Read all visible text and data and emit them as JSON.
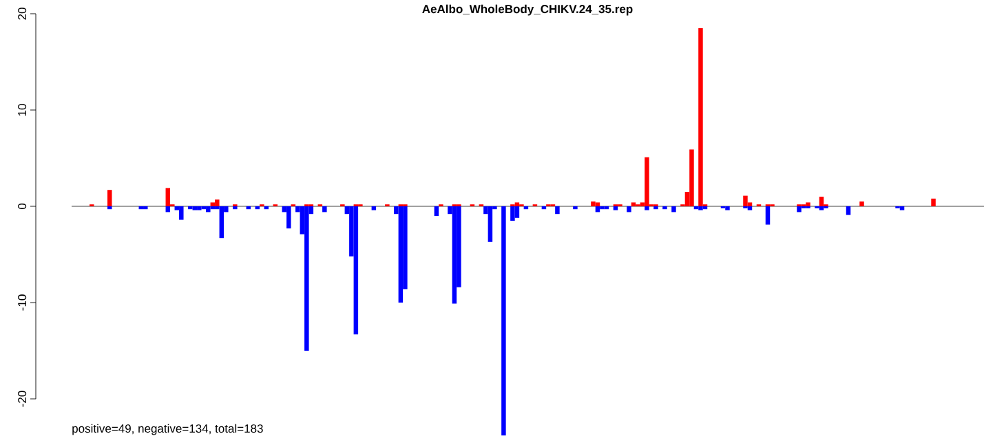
{
  "chart_data": {
    "type": "bar",
    "title": "AeAlbo_WholeBody_CHIKV.24_35.rep",
    "categories": [
      null,
      null,
      null,
      null,
      null,
      null,
      null,
      null,
      null,
      null,
      null,
      null,
      null,
      null,
      null,
      null,
      null,
      null,
      null,
      null,
      null,
      null,
      null,
      null,
      null,
      null,
      null,
      null,
      null,
      null,
      null,
      null,
      null,
      null,
      null,
      null,
      null,
      null,
      null,
      null,
      null,
      null,
      null,
      null,
      null,
      null,
      null,
      null,
      null,
      null,
      null,
      null,
      null,
      null,
      null,
      null,
      null,
      null,
      null,
      null,
      null,
      null,
      null,
      null,
      null,
      null,
      null,
      null,
      null,
      null,
      null,
      null,
      null,
      null,
      null,
      null,
      null,
      null,
      null,
      null,
      null,
      null,
      null,
      null,
      null,
      null,
      null,
      null,
      null,
      null,
      null,
      null,
      null,
      null,
      null,
      null,
      null,
      null,
      null,
      null,
      null,
      null,
      null,
      null,
      null,
      null,
      null,
      null,
      null,
      null,
      null,
      null,
      null,
      null,
      null,
      null,
      null,
      null,
      null,
      null,
      null,
      null,
      null,
      null,
      null,
      null,
      null,
      null,
      null,
      null,
      null,
      null,
      null,
      null,
      null,
      null,
      null,
      null,
      null,
      null,
      null,
      null,
      null,
      null,
      null,
      null,
      null,
      null,
      null,
      null,
      null,
      null,
      null,
      null,
      null,
      null,
      null,
      null,
      null,
      null,
      null,
      null,
      null,
      null,
      null,
      null,
      null,
      null,
      null,
      null,
      null,
      null,
      null,
      null,
      null,
      null,
      null,
      null,
      null,
      null,
      null,
      null,
      null,
      null,
      null,
      null,
      null,
      null,
      null,
      null,
      null,
      null,
      null,
      null,
      null,
      null,
      null,
      null,
      null,
      null,
      null,
      null,
      null,
      null
    ],
    "series": [
      {
        "color": "#ff0000",
        "values": [
          null,
          null,
          null,
          null,
          0.2,
          null,
          null,
          null,
          1.7,
          null,
          null,
          null,
          null,
          null,
          null,
          null,
          null,
          null,
          null,
          null,
          null,
          1.9,
          0.2,
          null,
          null,
          null,
          null,
          null,
          null,
          null,
          null,
          0.4,
          0.7,
          null,
          null,
          null,
          0.2,
          null,
          null,
          null,
          null,
          null,
          0.2,
          null,
          null,
          0.2,
          null,
          null,
          null,
          0.2,
          null,
          null,
          0.2,
          0.2,
          null,
          0.2,
          null,
          null,
          null,
          null,
          0.2,
          null,
          null,
          0.2,
          0.2,
          null,
          null,
          null,
          null,
          null,
          0.2,
          null,
          null,
          0.2,
          0.2,
          null,
          null,
          null,
          null,
          null,
          null,
          null,
          0.2,
          null,
          null,
          0.2,
          0.2,
          null,
          null,
          0.2,
          null,
          0.2,
          null,
          null,
          null,
          null,
          null,
          null,
          0.2,
          0.4,
          0.2,
          null,
          null,
          0.2,
          null,
          null,
          0.2,
          0.2,
          null,
          null,
          null,
          null,
          null,
          null,
          null,
          null,
          0.5,
          0.4,
          null,
          null,
          null,
          0.2,
          0.2,
          null,
          null,
          0.4,
          0.2,
          0.4,
          5.1,
          0.2,
          0.2,
          null,
          null,
          null,
          null,
          null,
          0.2,
          1.5,
          5.9,
          null,
          18.5,
          0.2,
          null,
          null,
          null,
          null,
          null,
          null,
          null,
          null,
          1.1,
          0.4,
          null,
          0.2,
          null,
          0.2,
          0.2,
          null,
          null,
          null,
          null,
          null,
          0.2,
          0.2,
          0.4,
          null,
          null,
          1.0,
          0.2,
          null,
          null,
          null,
          null,
          null,
          null,
          null,
          0.5,
          null,
          null,
          null,
          null,
          null,
          null,
          null,
          null,
          null,
          null,
          null,
          null,
          null,
          null,
          null,
          0.8,
          null,
          null,
          null,
          null,
          null,
          null,
          null,
          null,
          null,
          null,
          null
        ]
      },
      {
        "color": "#0000ff",
        "values": [
          null,
          null,
          null,
          null,
          null,
          null,
          null,
          null,
          -0.3,
          null,
          null,
          null,
          null,
          null,
          null,
          -0.3,
          -0.3,
          null,
          null,
          null,
          null,
          -0.6,
          null,
          -0.4,
          -1.4,
          null,
          -0.3,
          -0.4,
          -0.4,
          -0.3,
          -0.6,
          -0.3,
          -0.3,
          -3.3,
          -0.6,
          null,
          -0.3,
          null,
          null,
          -0.3,
          null,
          -0.3,
          null,
          -0.3,
          null,
          null,
          null,
          -0.6,
          -2.3,
          null,
          -0.6,
          -2.9,
          -15.0,
          -0.8,
          null,
          null,
          -0.6,
          null,
          null,
          null,
          null,
          -0.8,
          -5.2,
          -13.3,
          null,
          null,
          null,
          -0.4,
          null,
          null,
          null,
          null,
          -0.8,
          -10.0,
          -8.6,
          null,
          null,
          null,
          null,
          null,
          null,
          -1.0,
          null,
          null,
          -0.8,
          -10.1,
          -8.4,
          null,
          null,
          null,
          null,
          null,
          -0.8,
          -3.7,
          -0.3,
          null,
          -23.8,
          null,
          -1.5,
          -1.2,
          null,
          -0.3,
          null,
          null,
          null,
          -0.3,
          null,
          null,
          -0.8,
          null,
          null,
          null,
          -0.3,
          null,
          null,
          null,
          null,
          -0.6,
          -0.3,
          -0.3,
          null,
          -0.4,
          null,
          null,
          -0.6,
          null,
          null,
          null,
          -0.4,
          null,
          -0.3,
          null,
          -0.3,
          null,
          -0.6,
          null,
          null,
          null,
          null,
          -0.3,
          -0.4,
          -0.3,
          null,
          null,
          null,
          -0.2,
          -0.4,
          null,
          null,
          null,
          -0.2,
          -0.4,
          null,
          null,
          null,
          -1.9,
          null,
          null,
          null,
          null,
          null,
          null,
          -0.6,
          -0.2,
          -0.2,
          null,
          -0.2,
          -0.4,
          -0.2,
          null,
          null,
          null,
          null,
          -0.9,
          null,
          null,
          null,
          null,
          null,
          null,
          null,
          null,
          null,
          null,
          -0.2,
          -0.4,
          null,
          null,
          null,
          null,
          null,
          null,
          null,
          null,
          null,
          null,
          null,
          null,
          null,
          null,
          null,
          null,
          null,
          null
        ]
      }
    ],
    "ylim": [
      -24,
      20
    ],
    "yticks": [
      -20,
      -10,
      0,
      10,
      20
    ],
    "tick_labels": "y",
    "ref_lines": [
      {
        "axis": "y",
        "value": 0,
        "color": "#808080"
      }
    ],
    "annotations": [
      "positive=49, negative=134, total=183"
    ]
  }
}
